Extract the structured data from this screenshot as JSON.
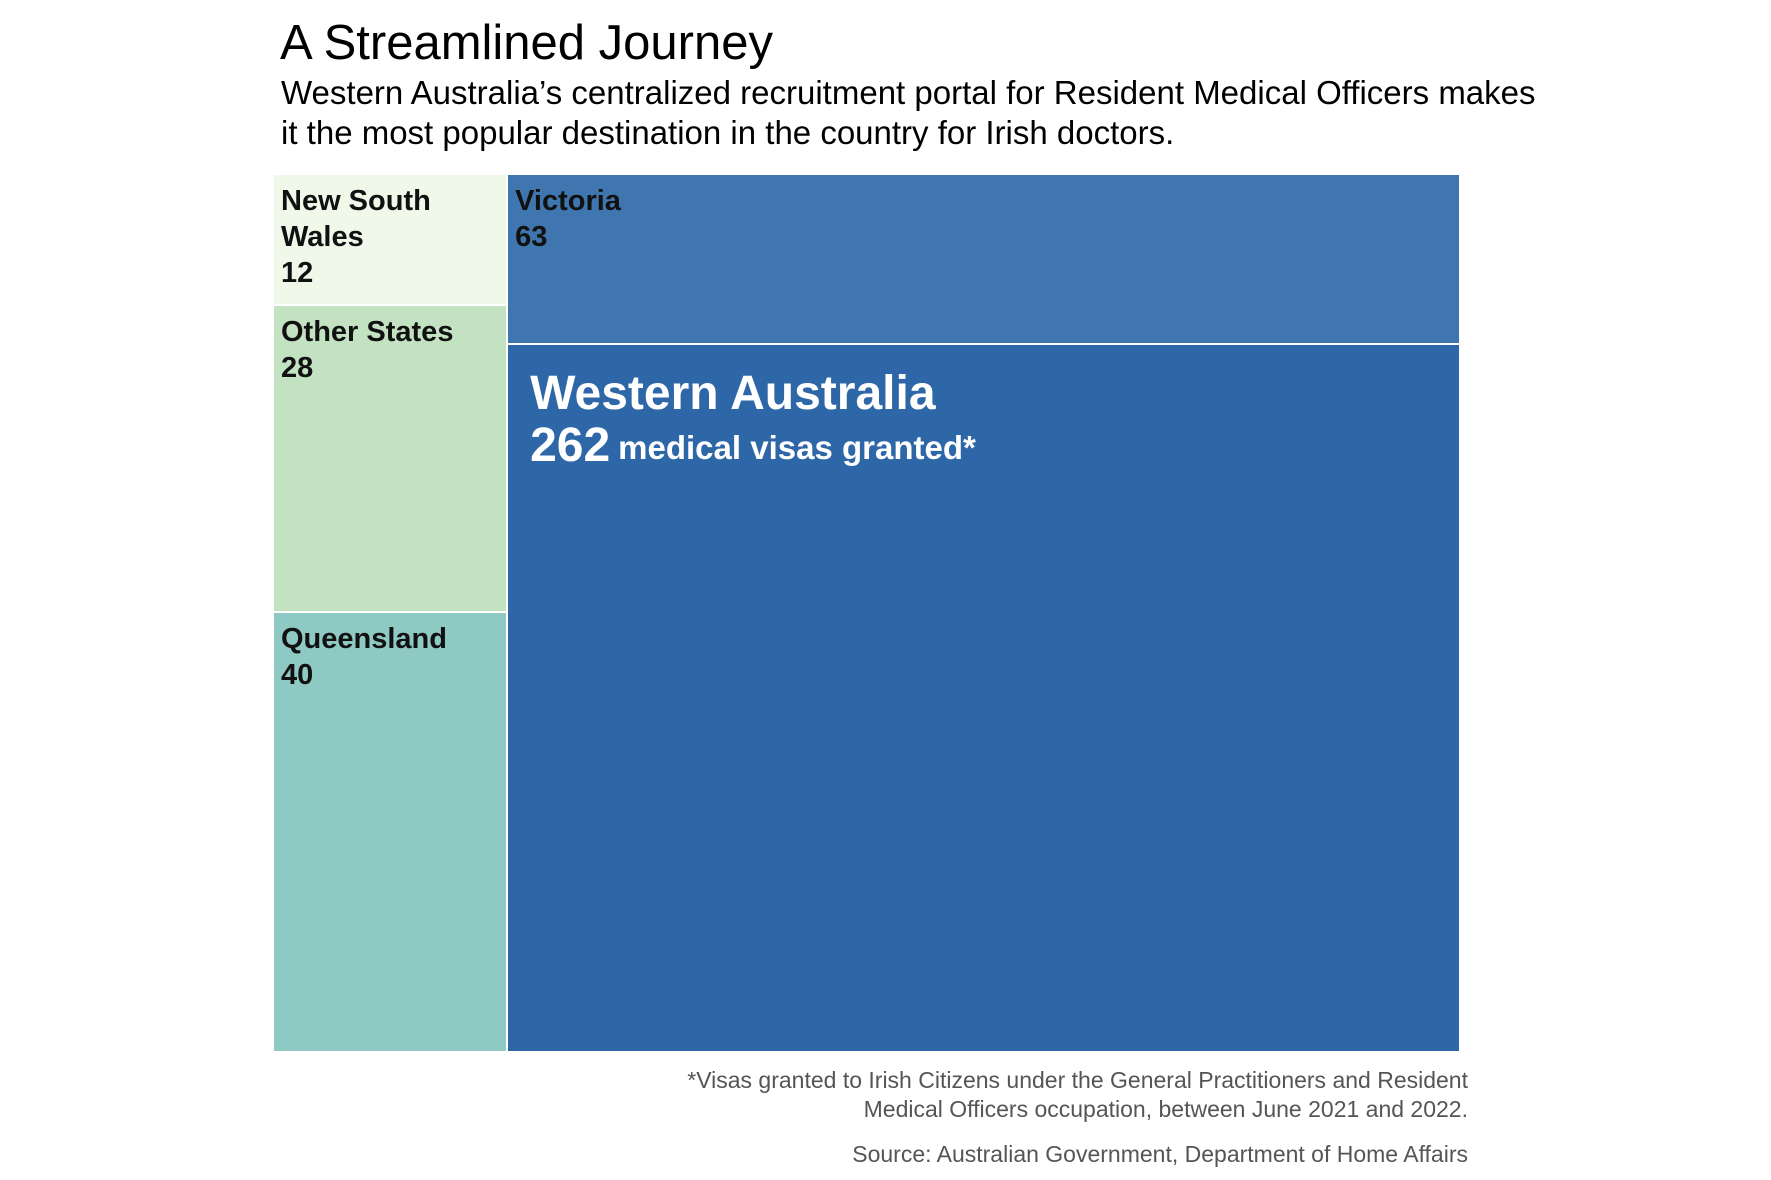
{
  "title": "A Streamlined Journey",
  "subtitle": "Western Australia’s centralized recruitment portal for Resident Medical Officers makes it the most popular destination in the country for Irish doctors.",
  "chart_data": {
    "type": "treemap",
    "title": "A Streamlined Journey",
    "subtitle": "Western Australia’s centralized recruitment portal for Resident Medical Officers makes it the most popular destination in the country for Irish doctors.",
    "categories": [
      "New South Wales",
      "Other States",
      "Queensland",
      "Victoria",
      "Western Australia"
    ],
    "values": [
      12,
      28,
      40,
      63,
      262
    ],
    "colors": [
      "#f0f8e9",
      "#c3e2c1",
      "#8ecac3",
      "#3f76af",
      "#2e67a8"
    ],
    "highlight_unit": "medical visas granted*",
    "highlight": "Western Australia"
  },
  "footnote": "*Visas granted to Irish Citizens under the General Practitioners and Resident Medical Officers occupation, between June 2021 and 2022.",
  "source": "Source: Australian Government, Department of Home Affairs"
}
